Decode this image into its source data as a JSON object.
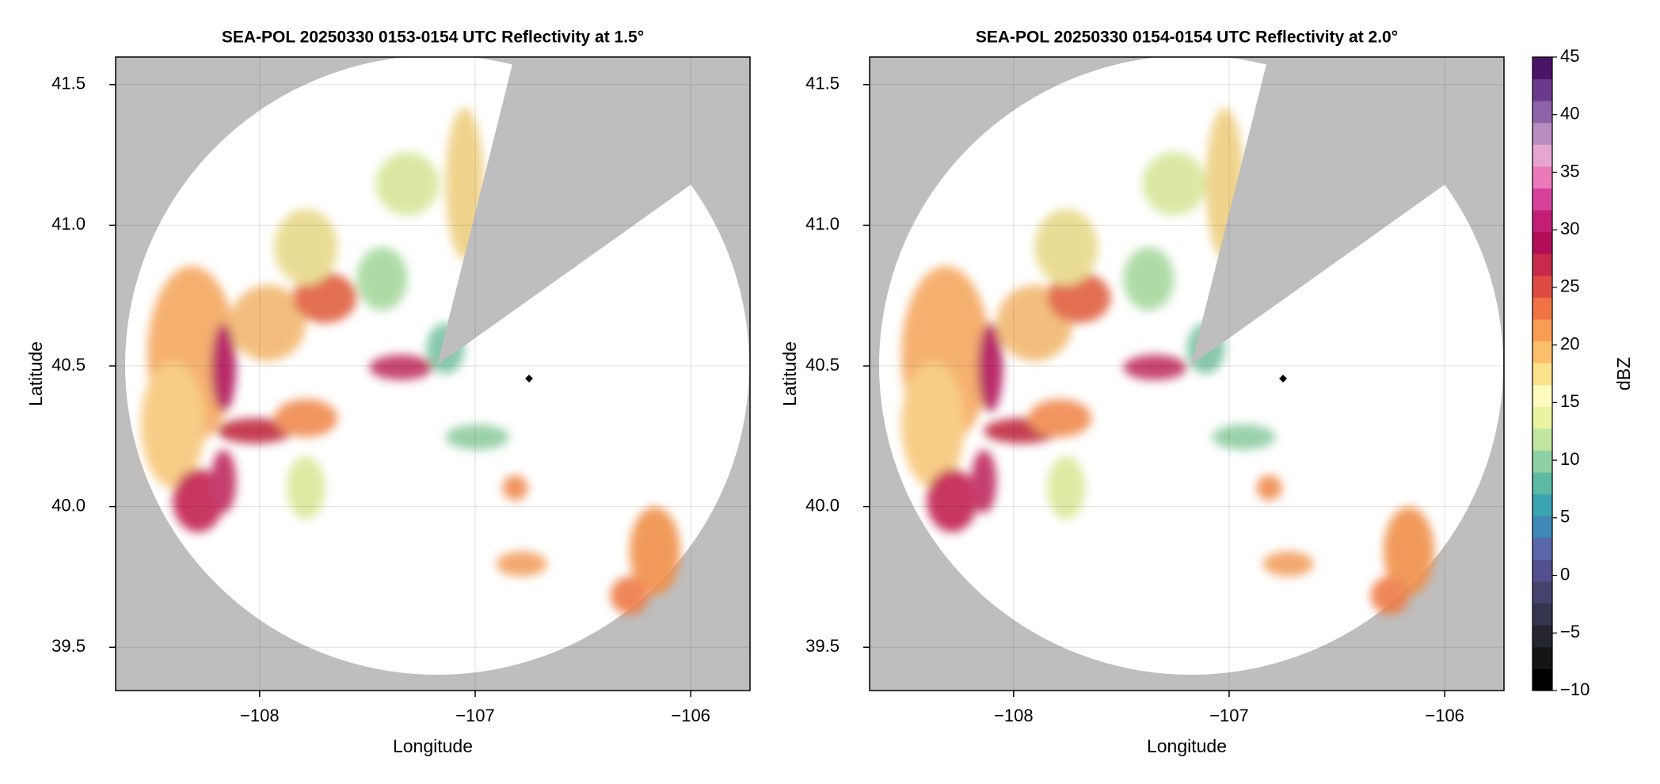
{
  "chart_data": [
    {
      "type": "ppi",
      "title": "SEA-POL 20250330 0153-0154 UTC Reflectivity at 1.5°",
      "x_label": "Longitude",
      "y_label": "Latitude",
      "xlim": [
        -108.668,
        -105.725
      ],
      "ylim": [
        39.346,
        41.598
      ],
      "xticks": [
        {
          "value": -108,
          "label": "−108"
        },
        {
          "value": -107,
          "label": "−107"
        },
        {
          "value": -106,
          "label": "−106"
        }
      ],
      "yticks": [
        39.5,
        {
          "value": 40,
          "label": "40.0"
        },
        40.5,
        {
          "value": 41,
          "label": "41.0"
        },
        41.5
      ],
      "grid": true,
      "points": {
        "x": [
          -106.75
        ],
        "y": [
          40.455
        ]
      }
    },
    {
      "type": "ppi",
      "title": "SEA-POL 20250330 0154-0154 UTC Reflectivity at 2.0°",
      "x_label": "Longitude",
      "y_label": "Latitude",
      "xlim": [
        -108.668,
        -105.725
      ],
      "ylim": [
        39.346,
        41.598
      ],
      "xticks": [
        {
          "value": -108,
          "label": "−108"
        },
        {
          "value": -107,
          "label": "−107"
        },
        {
          "value": -106,
          "label": "−106"
        }
      ],
      "yticks": [
        39.5,
        {
          "value": 40,
          "label": "40.0"
        },
        40.5,
        {
          "value": 41,
          "label": "41.0"
        },
        41.5
      ],
      "grid": true,
      "points": {
        "x": [
          -106.75
        ],
        "y": [
          40.455
        ]
      },
      "colorbar": {
        "label": "dBZ",
        "lim": [
          -10,
          45
        ],
        "ticks": [
          {
            "value": -10,
            "label": "−10"
          },
          {
            "value": -5,
            "label": "−5"
          },
          0,
          5,
          10,
          15,
          20,
          25,
          30,
          35,
          40,
          45
        ],
        "colors": [
          "#000000",
          "#141414",
          "#262630",
          "#35354f",
          "#43436e",
          "#52508e",
          "#5a67ab",
          "#3f88b8",
          "#3aa4b2",
          "#5cbaa4",
          "#8fd1a4",
          "#c0e59f",
          "#e8f4a0",
          "#fffbbf",
          "#fde28e",
          "#fcc06c",
          "#f99c54",
          "#ef7345",
          "#de4b43",
          "#c72a4c",
          "#b20e57",
          "#c21e73",
          "#d8419b",
          "#ea7ab9",
          "#e5a5d0",
          "#b98dc2",
          "#8c62a8",
          "#6c3a8c",
          "#4b1466"
        ]
      }
    }
  ]
}
